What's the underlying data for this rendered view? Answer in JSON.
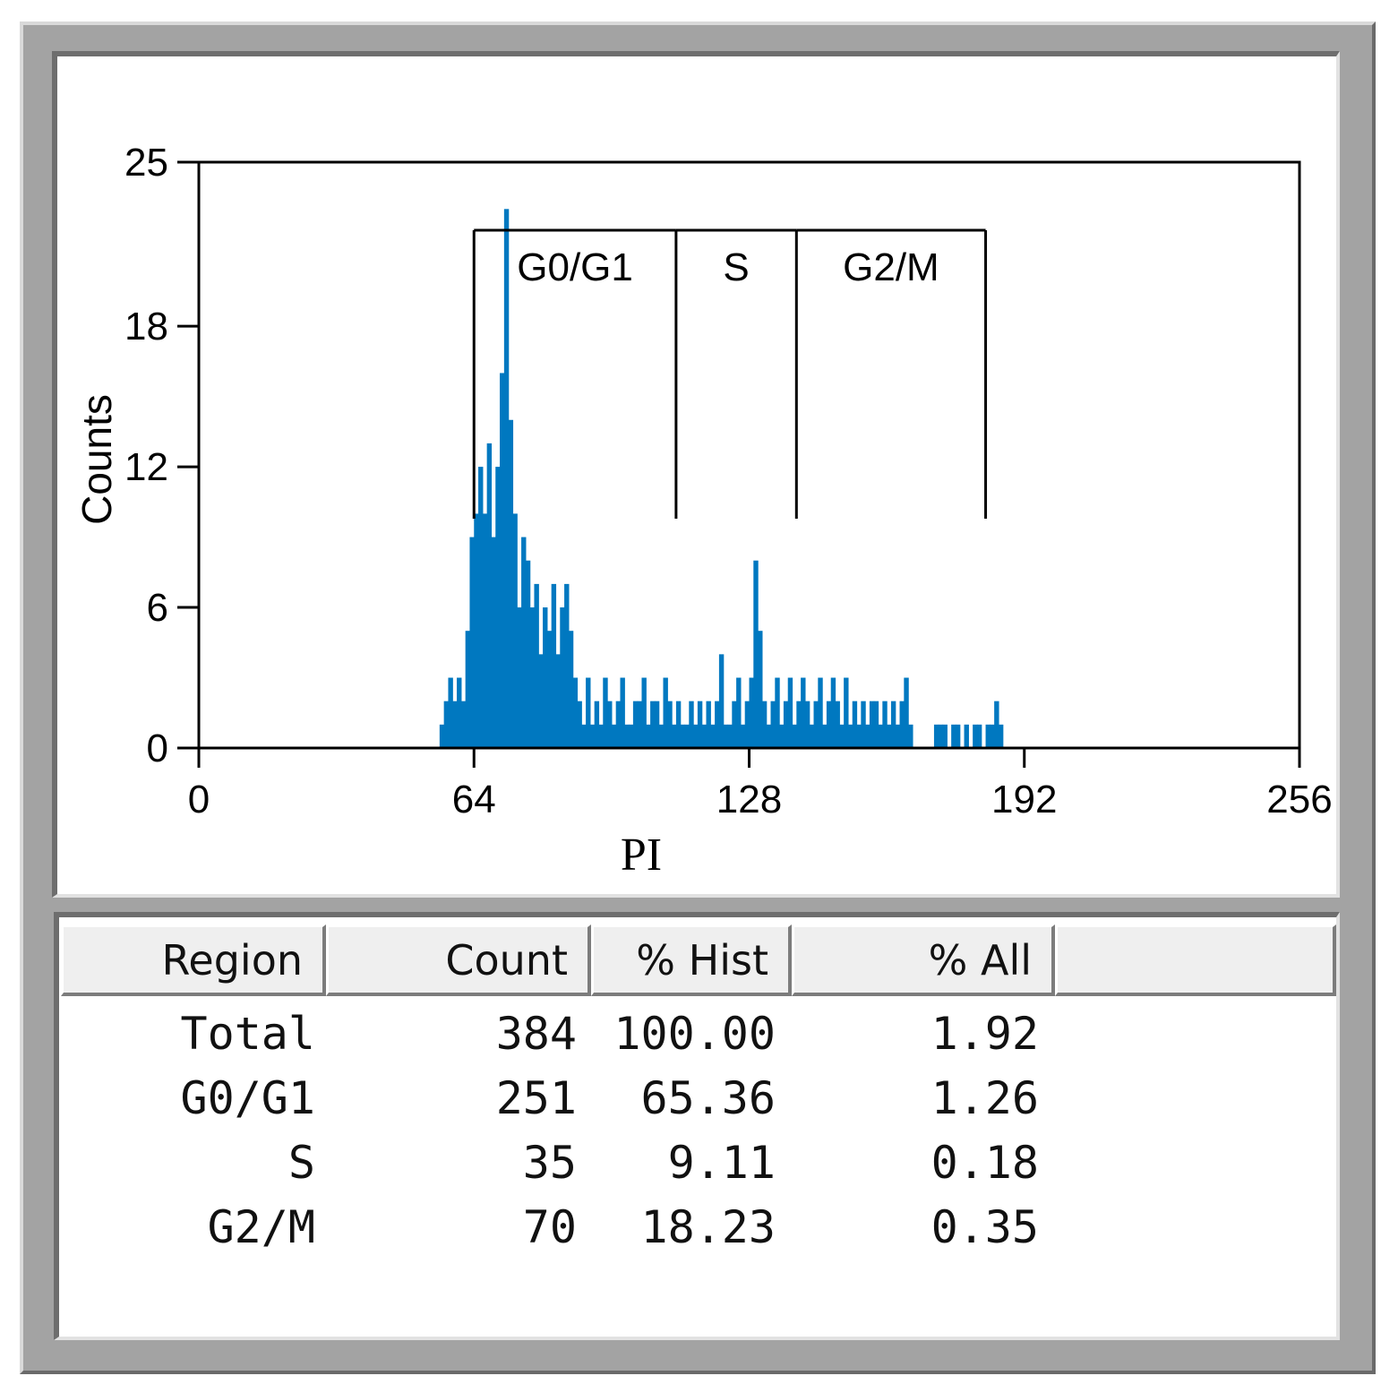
{
  "colors": {
    "histogram_fill": "#0078c0",
    "frame": "#a3a3a3",
    "header_bg": "#efefef"
  },
  "chart_data": {
    "type": "bar",
    "xlabel": "PI",
    "ylabel": "Counts",
    "xlim": [
      0,
      256
    ],
    "ylim": [
      0,
      25
    ],
    "x_ticks": [
      "0",
      "64",
      "128",
      "192",
      "256"
    ],
    "y_ticks": [
      "0",
      "6",
      "12",
      "18",
      "25"
    ],
    "gates": [
      {
        "label": "G0/G1",
        "start": 64,
        "end": 111
      },
      {
        "label": "S",
        "start": 111,
        "end": 139
      },
      {
        "label": "G2/M",
        "start": 139,
        "end": 183
      }
    ],
    "series": [
      {
        "bins_start": 56,
        "values": [
          1,
          2,
          3,
          2,
          3,
          2,
          5,
          9,
          10,
          12,
          10,
          13,
          9,
          12,
          16,
          23,
          14,
          10,
          6,
          9,
          8,
          6,
          7,
          4,
          6,
          5,
          7,
          4,
          6,
          7,
          5,
          3,
          2,
          1,
          3,
          1,
          2,
          1,
          3,
          2,
          1,
          2,
          3,
          1,
          1,
          2,
          2,
          3,
          1,
          2,
          2,
          1,
          3,
          2,
          1,
          2,
          1,
          1,
          2,
          1,
          2,
          1,
          2,
          1,
          2,
          4,
          1,
          1,
          2,
          3,
          1,
          2,
          3,
          8,
          5,
          2,
          1,
          2,
          3,
          1,
          2,
          3,
          1,
          2,
          3,
          2,
          1,
          2,
          3,
          1,
          2,
          3,
          2,
          1,
          3,
          1,
          2,
          1,
          2,
          1,
          2,
          2,
          1,
          2,
          1,
          2,
          1,
          2,
          3,
          1,
          0,
          0,
          0,
          0,
          0,
          1,
          1,
          1,
          0,
          1,
          1,
          0,
          1,
          0,
          1,
          1,
          0,
          1,
          1,
          2,
          1
        ]
      }
    ]
  },
  "table": {
    "headers": [
      "Region",
      "Count",
      "% Hist",
      "% All"
    ],
    "rows": [
      {
        "region": "Total",
        "count": "384",
        "pct_hist": "100.00",
        "pct_all": "1.92"
      },
      {
        "region": "G0/G1",
        "count": "251",
        "pct_hist": "65.36",
        "pct_all": "1.26"
      },
      {
        "region": "S",
        "count": "35",
        "pct_hist": "9.11",
        "pct_all": "0.18"
      },
      {
        "region": "G2/M",
        "count": "70",
        "pct_hist": "18.23",
        "pct_all": "0.35"
      }
    ]
  }
}
